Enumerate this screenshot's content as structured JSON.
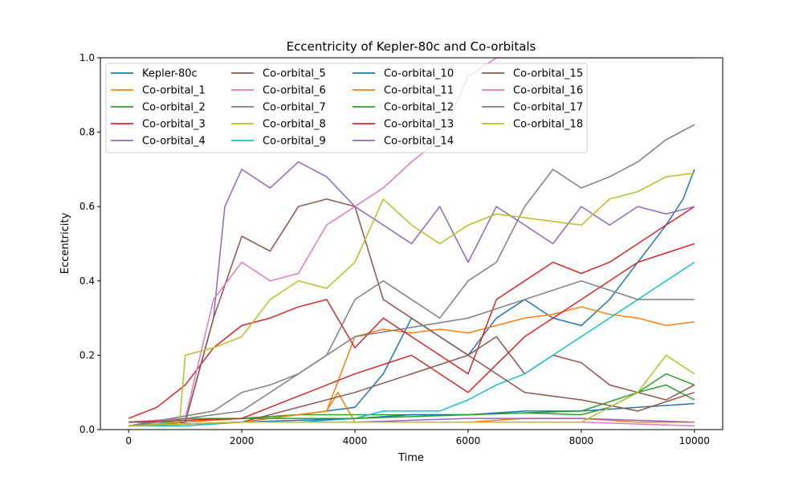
{
  "chart_data": {
    "type": "line",
    "title": "Eccentricity of Kepler-80c and Co-orbitals",
    "xlabel": "Time",
    "ylabel": "Eccentricity",
    "xlim": [
      -500,
      10500
    ],
    "ylim": [
      0,
      1.0
    ],
    "xticks": [
      0,
      2000,
      4000,
      6000,
      8000,
      10000
    ],
    "yticks": [
      0.0,
      0.2,
      0.4,
      0.6,
      0.8,
      1.0
    ],
    "xtick_labels": [
      "0",
      "2000",
      "4000",
      "6000",
      "8000",
      "10000"
    ],
    "ytick_labels": [
      "0.0",
      "0.2",
      "0.4",
      "0.6",
      "0.8",
      "1.0"
    ],
    "grid": false,
    "legend_position": "upper-left",
    "legend_columns": 4,
    "series": [
      {
        "name": "Kepler-80c",
        "color": "#1f77b4",
        "x": [
          0,
          1000,
          2000,
          3000,
          3500,
          4000,
          4500,
          5000,
          5500,
          6000,
          6500,
          7000,
          7500,
          8000,
          8500,
          9000,
          9500,
          9800,
          10000
        ],
        "y": [
          0.02,
          0.02,
          0.03,
          0.04,
          0.05,
          0.06,
          0.15,
          0.3,
          0.25,
          0.2,
          0.3,
          0.35,
          0.3,
          0.28,
          0.35,
          0.45,
          0.55,
          0.62,
          0.7
        ]
      },
      {
        "name": "Co-orbital_1",
        "color": "#ff7f0e",
        "x": [
          0,
          1000,
          2000,
          3000,
          3500,
          4000,
          4500,
          5000,
          5500,
          6000,
          6500,
          7000,
          7500,
          8000,
          8500,
          9000,
          9500,
          10000
        ],
        "y": [
          0.01,
          0.02,
          0.03,
          0.04,
          0.05,
          0.25,
          0.27,
          0.26,
          0.27,
          0.26,
          0.28,
          0.3,
          0.31,
          0.33,
          0.31,
          0.3,
          0.28,
          0.29
        ]
      },
      {
        "name": "Co-orbital_2",
        "color": "#2ca02c",
        "x": [
          0,
          1000,
          2000,
          3000,
          4000,
          5000,
          6000,
          7000,
          8000,
          8500,
          9000,
          9500,
          10000
        ],
        "y": [
          0.02,
          0.03,
          0.03,
          0.04,
          0.04,
          0.04,
          0.04,
          0.045,
          0.04,
          0.06,
          0.1,
          0.15,
          0.12
        ]
      },
      {
        "name": "Co-orbital_3",
        "color": "#d62728",
        "x": [
          0,
          500,
          1000,
          1500,
          2000,
          2500,
          3000,
          3500,
          4000,
          4500,
          5000,
          5500,
          6000,
          6500,
          7000,
          7500,
          8000,
          8500,
          9000,
          9500,
          10000
        ],
        "y": [
          0.03,
          0.06,
          0.12,
          0.22,
          0.28,
          0.3,
          0.33,
          0.35,
          0.22,
          0.3,
          0.25,
          0.2,
          0.15,
          0.35,
          0.4,
          0.45,
          0.42,
          0.45,
          0.5,
          0.55,
          0.6
        ]
      },
      {
        "name": "Co-orbital_4",
        "color": "#9467bd",
        "x": [
          0,
          1000,
          1500,
          1700,
          2000,
          2500,
          3000,
          3500,
          4000,
          4500,
          5000,
          5500,
          6000,
          6500,
          7000,
          7500,
          8000,
          8500,
          9000,
          9500,
          10000
        ],
        "y": [
          0.01,
          0.02,
          0.3,
          0.6,
          0.7,
          0.65,
          0.72,
          0.68,
          0.6,
          0.55,
          0.5,
          0.6,
          0.45,
          0.6,
          0.55,
          0.5,
          0.6,
          0.55,
          0.6,
          0.58,
          0.6
        ]
      },
      {
        "name": "Co-orbital_5",
        "color": "#8c564b",
        "x": [
          0,
          1000,
          1500,
          2000,
          2500,
          3000,
          3500,
          4000,
          4500,
          5000,
          5500,
          6000,
          6500,
          7000,
          7500,
          8000,
          8500,
          9000,
          9500,
          10000
        ],
        "y": [
          0.01,
          0.02,
          0.3,
          0.52,
          0.48,
          0.6,
          0.62,
          0.6,
          0.35,
          0.3,
          0.25,
          0.2,
          0.25,
          0.15,
          0.2,
          0.18,
          0.12,
          0.1,
          0.08,
          0.12
        ]
      },
      {
        "name": "Co-orbital_6",
        "color": "#e377c2",
        "x": [
          0,
          1000,
          1500,
          2000,
          2500,
          3000,
          3500,
          4000,
          4500,
          5000,
          5500,
          6000,
          6500,
          7000,
          8000,
          9000,
          10000
        ],
        "y": [
          0.02,
          0.03,
          0.35,
          0.45,
          0.4,
          0.42,
          0.55,
          0.6,
          0.65,
          0.72,
          0.78,
          0.95,
          1.0,
          1.0,
          1.0,
          1.0,
          1.0
        ]
      },
      {
        "name": "Co-orbital_7",
        "color": "#7f7f7f",
        "x": [
          0,
          1500,
          2000,
          2500,
          3000,
          3500,
          4000,
          4500,
          5000,
          5500,
          6000,
          6500,
          7000,
          7500,
          8000,
          8500,
          9000,
          9500,
          10000
        ],
        "y": [
          0.01,
          0.05,
          0.1,
          0.12,
          0.15,
          0.2,
          0.35,
          0.4,
          0.35,
          0.3,
          0.4,
          0.45,
          0.6,
          0.7,
          0.65,
          0.68,
          0.72,
          0.78,
          0.82
        ]
      },
      {
        "name": "Co-orbital_8",
        "color": "#bcbd22",
        "x": [
          0,
          900,
          1000,
          1500,
          2000,
          2500,
          3000,
          3500,
          4000,
          4500,
          5000,
          5500,
          6000,
          6500,
          7000,
          7500,
          8000,
          8500,
          9000,
          9500,
          10000
        ],
        "y": [
          0.01,
          0.02,
          0.2,
          0.22,
          0.25,
          0.35,
          0.4,
          0.38,
          0.45,
          0.62,
          0.55,
          0.5,
          0.55,
          0.58,
          0.57,
          0.56,
          0.55,
          0.62,
          0.64,
          0.68,
          0.69
        ]
      },
      {
        "name": "Co-orbital_9",
        "color": "#17becf",
        "x": [
          0,
          1000,
          2000,
          3000,
          4000,
          4500,
          5000,
          5500,
          6000,
          6500,
          7000,
          7500,
          8000,
          8500,
          9000,
          9500,
          10000
        ],
        "y": [
          0.01,
          0.01,
          0.02,
          0.02,
          0.03,
          0.05,
          0.05,
          0.05,
          0.08,
          0.12,
          0.15,
          0.2,
          0.25,
          0.3,
          0.35,
          0.4,
          0.45
        ]
      },
      {
        "name": "Co-orbital_10",
        "color": "#1f77b4",
        "x": [
          0,
          2000,
          4000,
          5000,
          6000,
          7000,
          8000,
          9000,
          10000
        ],
        "y": [
          0.01,
          0.02,
          0.03,
          0.04,
          0.04,
          0.05,
          0.05,
          0.06,
          0.07
        ]
      },
      {
        "name": "Co-orbital_11",
        "color": "#ff7f0e",
        "x": [
          0,
          2000,
          3500,
          3700,
          4000,
          5000,
          6000,
          7000,
          8000,
          9000,
          10000
        ],
        "y": [
          0.01,
          0.02,
          0.05,
          0.1,
          0.02,
          0.02,
          0.02,
          0.03,
          0.03,
          0.02,
          0.02
        ]
      },
      {
        "name": "Co-orbital_12",
        "color": "#2ca02c",
        "x": [
          0,
          2000,
          4000,
          6000,
          8000,
          9000,
          9500,
          10000
        ],
        "y": [
          0.02,
          0.03,
          0.03,
          0.04,
          0.05,
          0.1,
          0.12,
          0.08
        ]
      },
      {
        "name": "Co-orbital_13",
        "color": "#d62728",
        "x": [
          0,
          2000,
          4000,
          5000,
          6000,
          7000,
          8000,
          9000,
          10000
        ],
        "y": [
          0.02,
          0.03,
          0.15,
          0.2,
          0.1,
          0.25,
          0.35,
          0.45,
          0.5
        ]
      },
      {
        "name": "Co-orbital_14",
        "color": "#9467bd",
        "x": [
          0,
          2000,
          4000,
          6000,
          8000,
          10000
        ],
        "y": [
          0.01,
          0.02,
          0.02,
          0.03,
          0.03,
          0.02
        ]
      },
      {
        "name": "Co-orbital_15",
        "color": "#8c564b",
        "x": [
          0,
          2000,
          4000,
          5000,
          6000,
          7000,
          8000,
          9000,
          10000
        ],
        "y": [
          0.01,
          0.02,
          0.1,
          0.15,
          0.2,
          0.1,
          0.08,
          0.05,
          0.1
        ]
      },
      {
        "name": "Co-orbital_16",
        "color": "#e377c2",
        "x": [
          0,
          2000,
          4000,
          6000,
          8000,
          10000
        ],
        "y": [
          0.01,
          0.02,
          0.02,
          0.02,
          0.02,
          0.01
        ]
      },
      {
        "name": "Co-orbital_17",
        "color": "#7f7f7f",
        "x": [
          0,
          2000,
          4000,
          6000,
          8000,
          9000,
          10000
        ],
        "y": [
          0.01,
          0.05,
          0.25,
          0.3,
          0.4,
          0.35,
          0.35
        ]
      },
      {
        "name": "Co-orbital_18",
        "color": "#bcbd22",
        "x": [
          0,
          2000,
          4000,
          6000,
          8000,
          9000,
          9500,
          10000
        ],
        "y": [
          0.01,
          0.02,
          0.02,
          0.02,
          0.02,
          0.1,
          0.2,
          0.15
        ]
      }
    ]
  }
}
